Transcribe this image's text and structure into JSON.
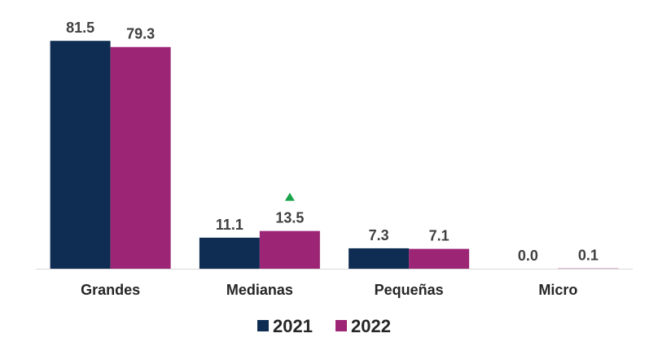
{
  "chart_data": {
    "type": "bar",
    "categories": [
      "Grandes",
      "Medianas",
      "Pequeñas",
      "Micro"
    ],
    "series": [
      {
        "name": "2021",
        "color": "#0f2d52",
        "values": [
          81.5,
          11.1,
          7.3,
          0.0
        ],
        "labels": [
          "81.5",
          "11.1",
          "7.3",
          "0.0"
        ]
      },
      {
        "name": "2022",
        "color": "#9c2576",
        "values": [
          79.3,
          13.5,
          7.1,
          0.1
        ],
        "labels": [
          "79.3",
          "13.5",
          "7.1",
          "0.1"
        ]
      }
    ],
    "ylim": [
      0,
      90
    ],
    "grid": false,
    "legend": "bottom-center",
    "annotations": [
      {
        "category": "Medianas",
        "series": "2022",
        "marker": "up-triangle",
        "color": "#1aa34a"
      }
    ]
  }
}
